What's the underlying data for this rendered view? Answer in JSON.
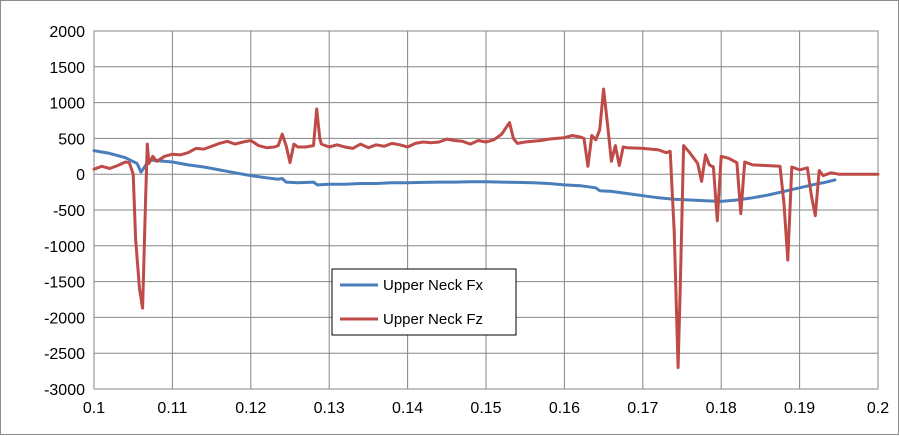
{
  "chart_data": {
    "type": "line",
    "title": "",
    "xlabel": "",
    "ylabel": "",
    "xlim": [
      0.1,
      0.2
    ],
    "ylim": [
      -3000,
      2000
    ],
    "x_ticks": [
      0.1,
      0.11,
      0.12,
      0.13,
      0.14,
      0.15,
      0.16,
      0.17,
      0.18,
      0.19,
      0.2
    ],
    "x_tick_labels": [
      "0.1",
      "0.11",
      "0.12",
      "0.13",
      "0.14",
      "0.15",
      "0.16",
      "0.17",
      "0.18",
      "0.19",
      "0.2"
    ],
    "y_ticks": [
      -3000,
      -2500,
      -2000,
      -1500,
      -1000,
      -500,
      0,
      500,
      1000,
      1500,
      2000
    ],
    "y_tick_labels": [
      "-3000",
      "-2500",
      "-2000",
      "-1500",
      "-1000",
      "-500",
      "0",
      "500",
      "1000",
      "1500",
      "2000"
    ],
    "grid": true,
    "legend_position": "center-left inside plot",
    "series": [
      {
        "name": "Upper Neck Fx",
        "color": "#4a7ebb",
        "points": [
          [
            0.1,
            330
          ],
          [
            0.102,
            290
          ],
          [
            0.104,
            230
          ],
          [
            0.1055,
            150
          ],
          [
            0.106,
            30
          ],
          [
            0.1065,
            110
          ],
          [
            0.107,
            200
          ],
          [
            0.108,
            190
          ],
          [
            0.11,
            170
          ],
          [
            0.112,
            130
          ],
          [
            0.114,
            100
          ],
          [
            0.116,
            60
          ],
          [
            0.118,
            20
          ],
          [
            0.12,
            -20
          ],
          [
            0.122,
            -50
          ],
          [
            0.1235,
            -70
          ],
          [
            0.124,
            -60
          ],
          [
            0.1245,
            -110
          ],
          [
            0.126,
            -120
          ],
          [
            0.128,
            -110
          ],
          [
            0.1285,
            -150
          ],
          [
            0.13,
            -140
          ],
          [
            0.132,
            -140
          ],
          [
            0.134,
            -130
          ],
          [
            0.136,
            -130
          ],
          [
            0.138,
            -120
          ],
          [
            0.14,
            -120
          ],
          [
            0.142,
            -115
          ],
          [
            0.144,
            -110
          ],
          [
            0.146,
            -110
          ],
          [
            0.148,
            -105
          ],
          [
            0.15,
            -105
          ],
          [
            0.152,
            -110
          ],
          [
            0.154,
            -115
          ],
          [
            0.156,
            -120
          ],
          [
            0.158,
            -130
          ],
          [
            0.16,
            -150
          ],
          [
            0.162,
            -160
          ],
          [
            0.164,
            -190
          ],
          [
            0.1645,
            -230
          ],
          [
            0.166,
            -240
          ],
          [
            0.168,
            -270
          ],
          [
            0.17,
            -300
          ],
          [
            0.172,
            -330
          ],
          [
            0.174,
            -350
          ],
          [
            0.176,
            -360
          ],
          [
            0.178,
            -370
          ],
          [
            0.18,
            -380
          ],
          [
            0.182,
            -360
          ],
          [
            0.184,
            -330
          ],
          [
            0.186,
            -290
          ],
          [
            0.188,
            -240
          ],
          [
            0.19,
            -190
          ],
          [
            0.192,
            -140
          ],
          [
            0.193,
            -120
          ],
          [
            0.1945,
            -80
          ]
        ]
      },
      {
        "name": "Upper Neck Fz",
        "color": "#be4b48",
        "points": [
          [
            0.1,
            70
          ],
          [
            0.101,
            110
          ],
          [
            0.102,
            80
          ],
          [
            0.103,
            120
          ],
          [
            0.104,
            170
          ],
          [
            0.1045,
            160
          ],
          [
            0.105,
            0
          ],
          [
            0.1053,
            -900
          ],
          [
            0.1058,
            -1600
          ],
          [
            0.1062,
            -1870
          ],
          [
            0.1066,
            -300
          ],
          [
            0.1068,
            420
          ],
          [
            0.107,
            150
          ],
          [
            0.1075,
            250
          ],
          [
            0.108,
            180
          ],
          [
            0.109,
            250
          ],
          [
            0.11,
            280
          ],
          [
            0.111,
            270
          ],
          [
            0.112,
            300
          ],
          [
            0.113,
            360
          ],
          [
            0.114,
            350
          ],
          [
            0.115,
            390
          ],
          [
            0.116,
            430
          ],
          [
            0.117,
            460
          ],
          [
            0.118,
            420
          ],
          [
            0.119,
            450
          ],
          [
            0.12,
            470
          ],
          [
            0.121,
            400
          ],
          [
            0.122,
            370
          ],
          [
            0.123,
            380
          ],
          [
            0.1235,
            400
          ],
          [
            0.124,
            560
          ],
          [
            0.1245,
            400
          ],
          [
            0.125,
            160
          ],
          [
            0.1255,
            420
          ],
          [
            0.126,
            380
          ],
          [
            0.127,
            380
          ],
          [
            0.128,
            400
          ],
          [
            0.1284,
            910
          ],
          [
            0.1288,
            500
          ],
          [
            0.129,
            420
          ],
          [
            0.13,
            380
          ],
          [
            0.131,
            410
          ],
          [
            0.132,
            380
          ],
          [
            0.133,
            360
          ],
          [
            0.134,
            420
          ],
          [
            0.135,
            370
          ],
          [
            0.136,
            410
          ],
          [
            0.137,
            390
          ],
          [
            0.138,
            430
          ],
          [
            0.139,
            410
          ],
          [
            0.14,
            380
          ],
          [
            0.141,
            430
          ],
          [
            0.142,
            450
          ],
          [
            0.143,
            440
          ],
          [
            0.144,
            450
          ],
          [
            0.145,
            490
          ],
          [
            0.146,
            470
          ],
          [
            0.147,
            460
          ],
          [
            0.148,
            420
          ],
          [
            0.149,
            470
          ],
          [
            0.15,
            450
          ],
          [
            0.151,
            480
          ],
          [
            0.152,
            560
          ],
          [
            0.153,
            720
          ],
          [
            0.1535,
            500
          ],
          [
            0.154,
            430
          ],
          [
            0.155,
            450
          ],
          [
            0.156,
            460
          ],
          [
            0.157,
            470
          ],
          [
            0.158,
            490
          ],
          [
            0.159,
            500
          ],
          [
            0.16,
            510
          ],
          [
            0.161,
            540
          ],
          [
            0.162,
            520
          ],
          [
            0.1625,
            500
          ],
          [
            0.163,
            110
          ],
          [
            0.1635,
            540
          ],
          [
            0.164,
            480
          ],
          [
            0.1645,
            620
          ],
          [
            0.165,
            1190
          ],
          [
            0.1655,
            700
          ],
          [
            0.166,
            180
          ],
          [
            0.1665,
            400
          ],
          [
            0.167,
            120
          ],
          [
            0.1675,
            380
          ],
          [
            0.168,
            370
          ],
          [
            0.17,
            360
          ],
          [
            0.172,
            340
          ],
          [
            0.173,
            300
          ],
          [
            0.1735,
            320
          ],
          [
            0.174,
            -800
          ],
          [
            0.1745,
            -2700
          ],
          [
            0.1748,
            -1500
          ],
          [
            0.1752,
            400
          ],
          [
            0.176,
            300
          ],
          [
            0.177,
            150
          ],
          [
            0.1775,
            -100
          ],
          [
            0.178,
            270
          ],
          [
            0.1785,
            130
          ],
          [
            0.179,
            100
          ],
          [
            0.1795,
            -650
          ],
          [
            0.18,
            250
          ],
          [
            0.181,
            220
          ],
          [
            0.182,
            160
          ],
          [
            0.1825,
            -550
          ],
          [
            0.183,
            170
          ],
          [
            0.184,
            130
          ],
          [
            0.186,
            120
          ],
          [
            0.1875,
            110
          ],
          [
            0.188,
            -400
          ],
          [
            0.1885,
            -1200
          ],
          [
            0.189,
            100
          ],
          [
            0.19,
            60
          ],
          [
            0.191,
            90
          ],
          [
            0.1915,
            -300
          ],
          [
            0.192,
            -580
          ],
          [
            0.1925,
            50
          ],
          [
            0.193,
            -20
          ],
          [
            0.194,
            20
          ],
          [
            0.195,
            0
          ],
          [
            0.2,
            0
          ]
        ]
      }
    ]
  }
}
